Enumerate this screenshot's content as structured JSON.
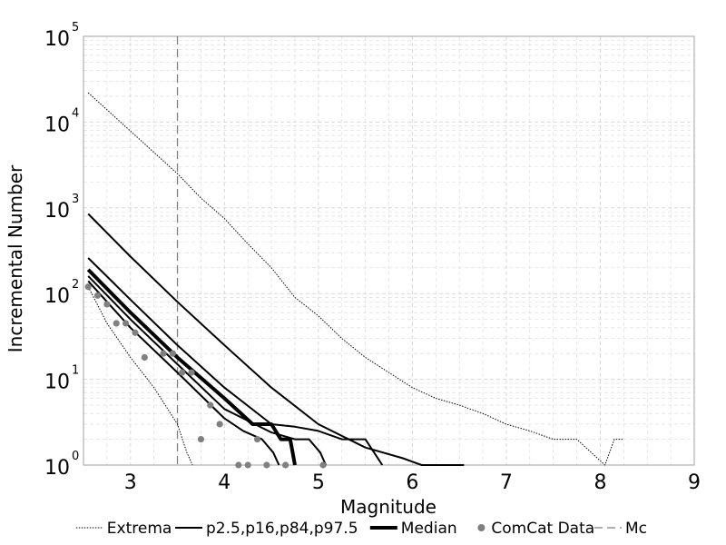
{
  "chart_data": {
    "type": "line",
    "title": "",
    "xlabel": "Magnitude",
    "ylabel": "Incremental Number",
    "xlim": [
      2.5,
      9
    ],
    "ylim_log10": [
      0,
      5
    ],
    "y_scale": "log",
    "grid": true,
    "legend_position": "bottom",
    "x_ticks": [
      "3",
      "4",
      "5",
      "6",
      "7",
      "8",
      "9"
    ],
    "y_ticks": [
      {
        "base": "10",
        "exp": "0"
      },
      {
        "base": "10",
        "exp": "1"
      },
      {
        "base": "10",
        "exp": "2"
      },
      {
        "base": "10",
        "exp": "3"
      },
      {
        "base": "10",
        "exp": "4"
      },
      {
        "base": "10",
        "exp": "5"
      }
    ],
    "mc": 3.5,
    "series": [
      {
        "name": "Extrema",
        "kind": "extrema-upper",
        "style": "dotted",
        "x": [
          2.55,
          3.05,
          3.5,
          3.75,
          4.0,
          4.25,
          4.5,
          4.75,
          5.0,
          5.25,
          5.5,
          5.75,
          6.0,
          6.25,
          6.5,
          6.75,
          7.0,
          7.25,
          7.5,
          7.75,
          8.05,
          8.15,
          8.25
        ],
        "y": [
          22000,
          7000,
          2500,
          1300,
          750,
          380,
          200,
          90,
          55,
          30,
          18,
          12,
          8,
          6,
          5,
          4,
          3,
          2.5,
          2,
          2,
          1,
          2,
          2
        ]
      },
      {
        "name": "Extrema",
        "kind": "extrema-lower",
        "style": "dotted",
        "x": [
          2.55,
          2.75,
          3.0,
          3.25,
          3.5,
          3.6,
          3.66
        ],
        "y": [
          120,
          45,
          18,
          8,
          3,
          1.4,
          1
        ]
      },
      {
        "name": "p2.5,p16,p84,p97.5",
        "kind": "percentile",
        "x": [
          2.55,
          3.0,
          3.5,
          4.0,
          4.5,
          5.0,
          5.5,
          5.9,
          6.1,
          6.55
        ],
        "y": [
          850,
          270,
          80,
          25,
          8,
          3,
          1.6,
          1.2,
          1,
          1
        ]
      },
      {
        "name": "p2.5,p16,p84,p97.5",
        "kind": "percentile",
        "x": [
          2.55,
          3.0,
          3.5,
          4.0,
          4.5,
          4.75,
          5.0,
          5.25,
          5.5,
          5.68
        ],
        "y": [
          260,
          85,
          25,
          8,
          3,
          2.8,
          2.5,
          2,
          2,
          1
        ]
      },
      {
        "name": "p2.5,p16,p84,p97.5",
        "kind": "percentile",
        "x": [
          2.55,
          3.0,
          3.5,
          4.0,
          4.5,
          4.75,
          4.9,
          5.02,
          5.08
        ],
        "y": [
          160,
          50,
          15,
          4.5,
          2.4,
          2,
          2,
          1.4,
          1
        ]
      },
      {
        "name": "p2.5,p16,p84,p97.5",
        "kind": "percentile",
        "x": [
          2.55,
          3.0,
          3.5,
          4.0,
          4.2,
          4.4,
          4.52,
          4.58
        ],
        "y": [
          140,
          40,
          12,
          3.5,
          2.5,
          2,
          1.4,
          1
        ]
      },
      {
        "name": "Median",
        "kind": "median",
        "x": [
          2.55,
          3.0,
          3.5,
          4.0,
          4.3,
          4.5,
          4.6,
          4.7,
          4.75
        ],
        "y": [
          190,
          60,
          18,
          6,
          3,
          3,
          2,
          2,
          1
        ]
      },
      {
        "name": "ComCat Data",
        "kind": "scatter",
        "x": [
          2.55,
          2.65,
          2.75,
          2.85,
          2.95,
          3.05,
          3.15,
          3.35,
          3.45,
          3.55,
          3.65,
          3.75,
          3.85,
          3.95,
          4.15,
          4.25,
          4.35,
          4.45,
          4.65,
          5.05
        ],
        "y": [
          120,
          95,
          75,
          45,
          45,
          35,
          18,
          20,
          20,
          12,
          12,
          2,
          5,
          3,
          1,
          1,
          2,
          1,
          1,
          1
        ]
      }
    ],
    "legend": [
      {
        "label": "Extrema",
        "style": "dotted"
      },
      {
        "label": "p2.5,p16,p84,p97.5",
        "style": "solid"
      },
      {
        "label": "Median",
        "style": "bold"
      },
      {
        "label": "ComCat Data",
        "style": "marker"
      },
      {
        "label": "Mc",
        "style": "dashed"
      }
    ],
    "colors": {
      "lines": "#000000",
      "data_points": "#808080",
      "mc_line": "#808080",
      "grid": "#d9d9d9"
    }
  }
}
